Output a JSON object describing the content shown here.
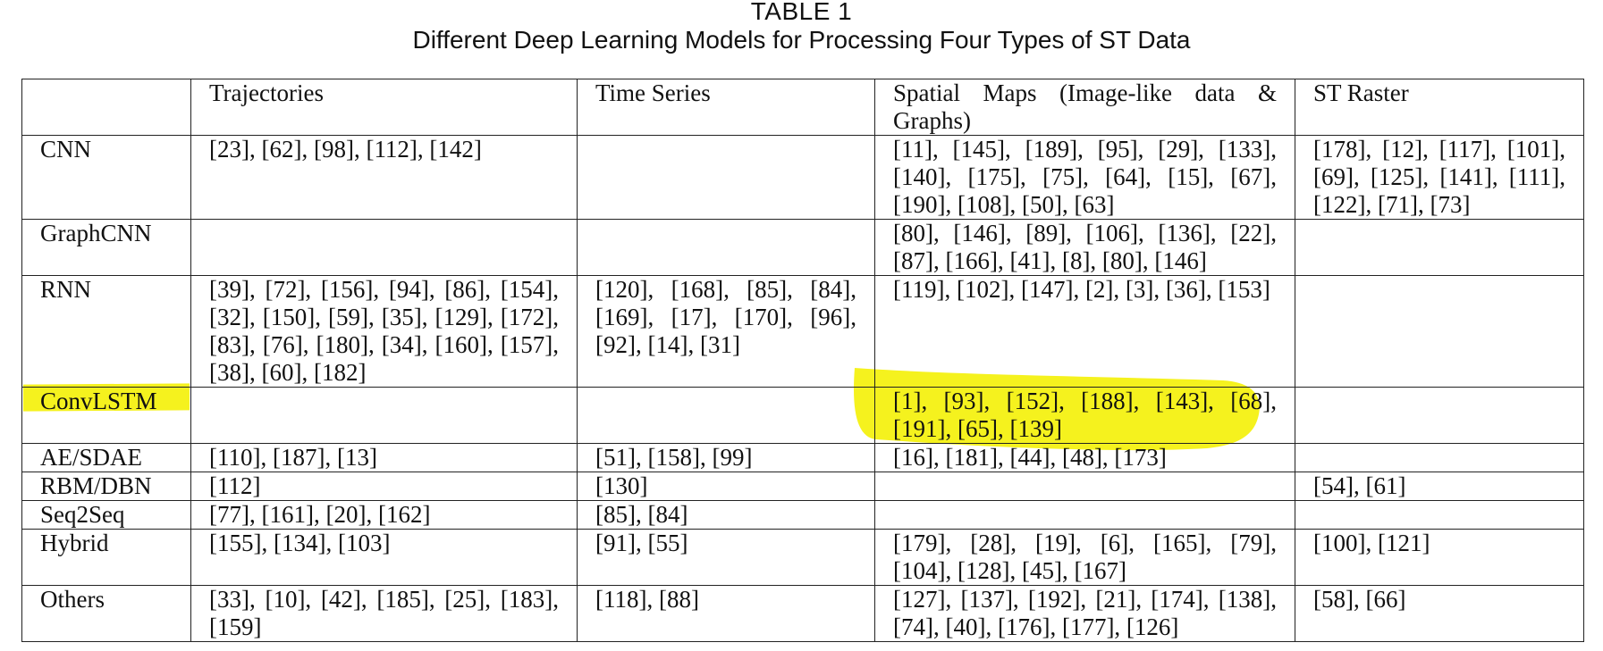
{
  "caption": {
    "number": "TABLE 1",
    "title": "Different Deep Learning Models for Processing Four Types of ST Data"
  },
  "columns": [
    "",
    "Trajectories",
    "Time Series",
    "Spatial Maps (Image-like data & Graphs)",
    "ST Raster"
  ],
  "rows": [
    {
      "model": "CNN",
      "cells": [
        "[23], [62], [98], [112], [142]",
        "",
        "[11], [145], [189], [95], [29], [133], [140], [175], [75], [64], [15], [67], [190], [108], [50], [63]",
        "[178], [12], [117], [101], [69], [125], [141], [111], [122], [71], [73]"
      ]
    },
    {
      "model": "GraphCNN",
      "cells": [
        "",
        "",
        "[80], [146], [89], [106], [136], [22], [87], [166], [41], [8], [80], [146]",
        ""
      ]
    },
    {
      "model": "RNN",
      "cells": [
        "[39], [72], [156], [94], [86], [154], [32], [150], [59], [35], [129], [172], [83], [76], [180], [34], [160], [157], [38], [60], [182]",
        "[120], [168], [85], [84], [169], [17], [170], [96], [92], [14], [31]",
        "[119], [102], [147], [2], [3], [36], [153]",
        ""
      ]
    },
    {
      "model": "ConvLSTM",
      "cells": [
        "",
        "",
        "[1], [93], [152], [188], [143], [68], [191], [65], [139]",
        ""
      ]
    },
    {
      "model": "AE/SDAE",
      "cells": [
        "[110], [187], [13]",
        "[51], [158], [99]",
        "[16], [181], [44], [48], [173]",
        ""
      ]
    },
    {
      "model": "RBM/DBN",
      "cells": [
        "[112]",
        "[130]",
        "",
        "[54], [61]"
      ]
    },
    {
      "model": "Seq2Seq",
      "cells": [
        "[77], [161], [20], [162]",
        "[85], [84]",
        "",
        ""
      ]
    },
    {
      "model": "Hybrid",
      "cells": [
        "[155], [134], [103]",
        "[91], [55]",
        "[179], [28], [19], [6], [165], [79], [104], [128], [45], [167]",
        "[100], [121]"
      ]
    },
    {
      "model": "Others",
      "cells": [
        "[33], [10], [42], [185], [25], [183], [159]",
        "[118], [88]",
        "[127], [137], [192], [21], [174], [138], [74], [40], [176], [177], [126]",
        "[58], [66]"
      ]
    }
  ],
  "highlight": {
    "row": "ConvLSTM",
    "color": "#f5f21e"
  }
}
